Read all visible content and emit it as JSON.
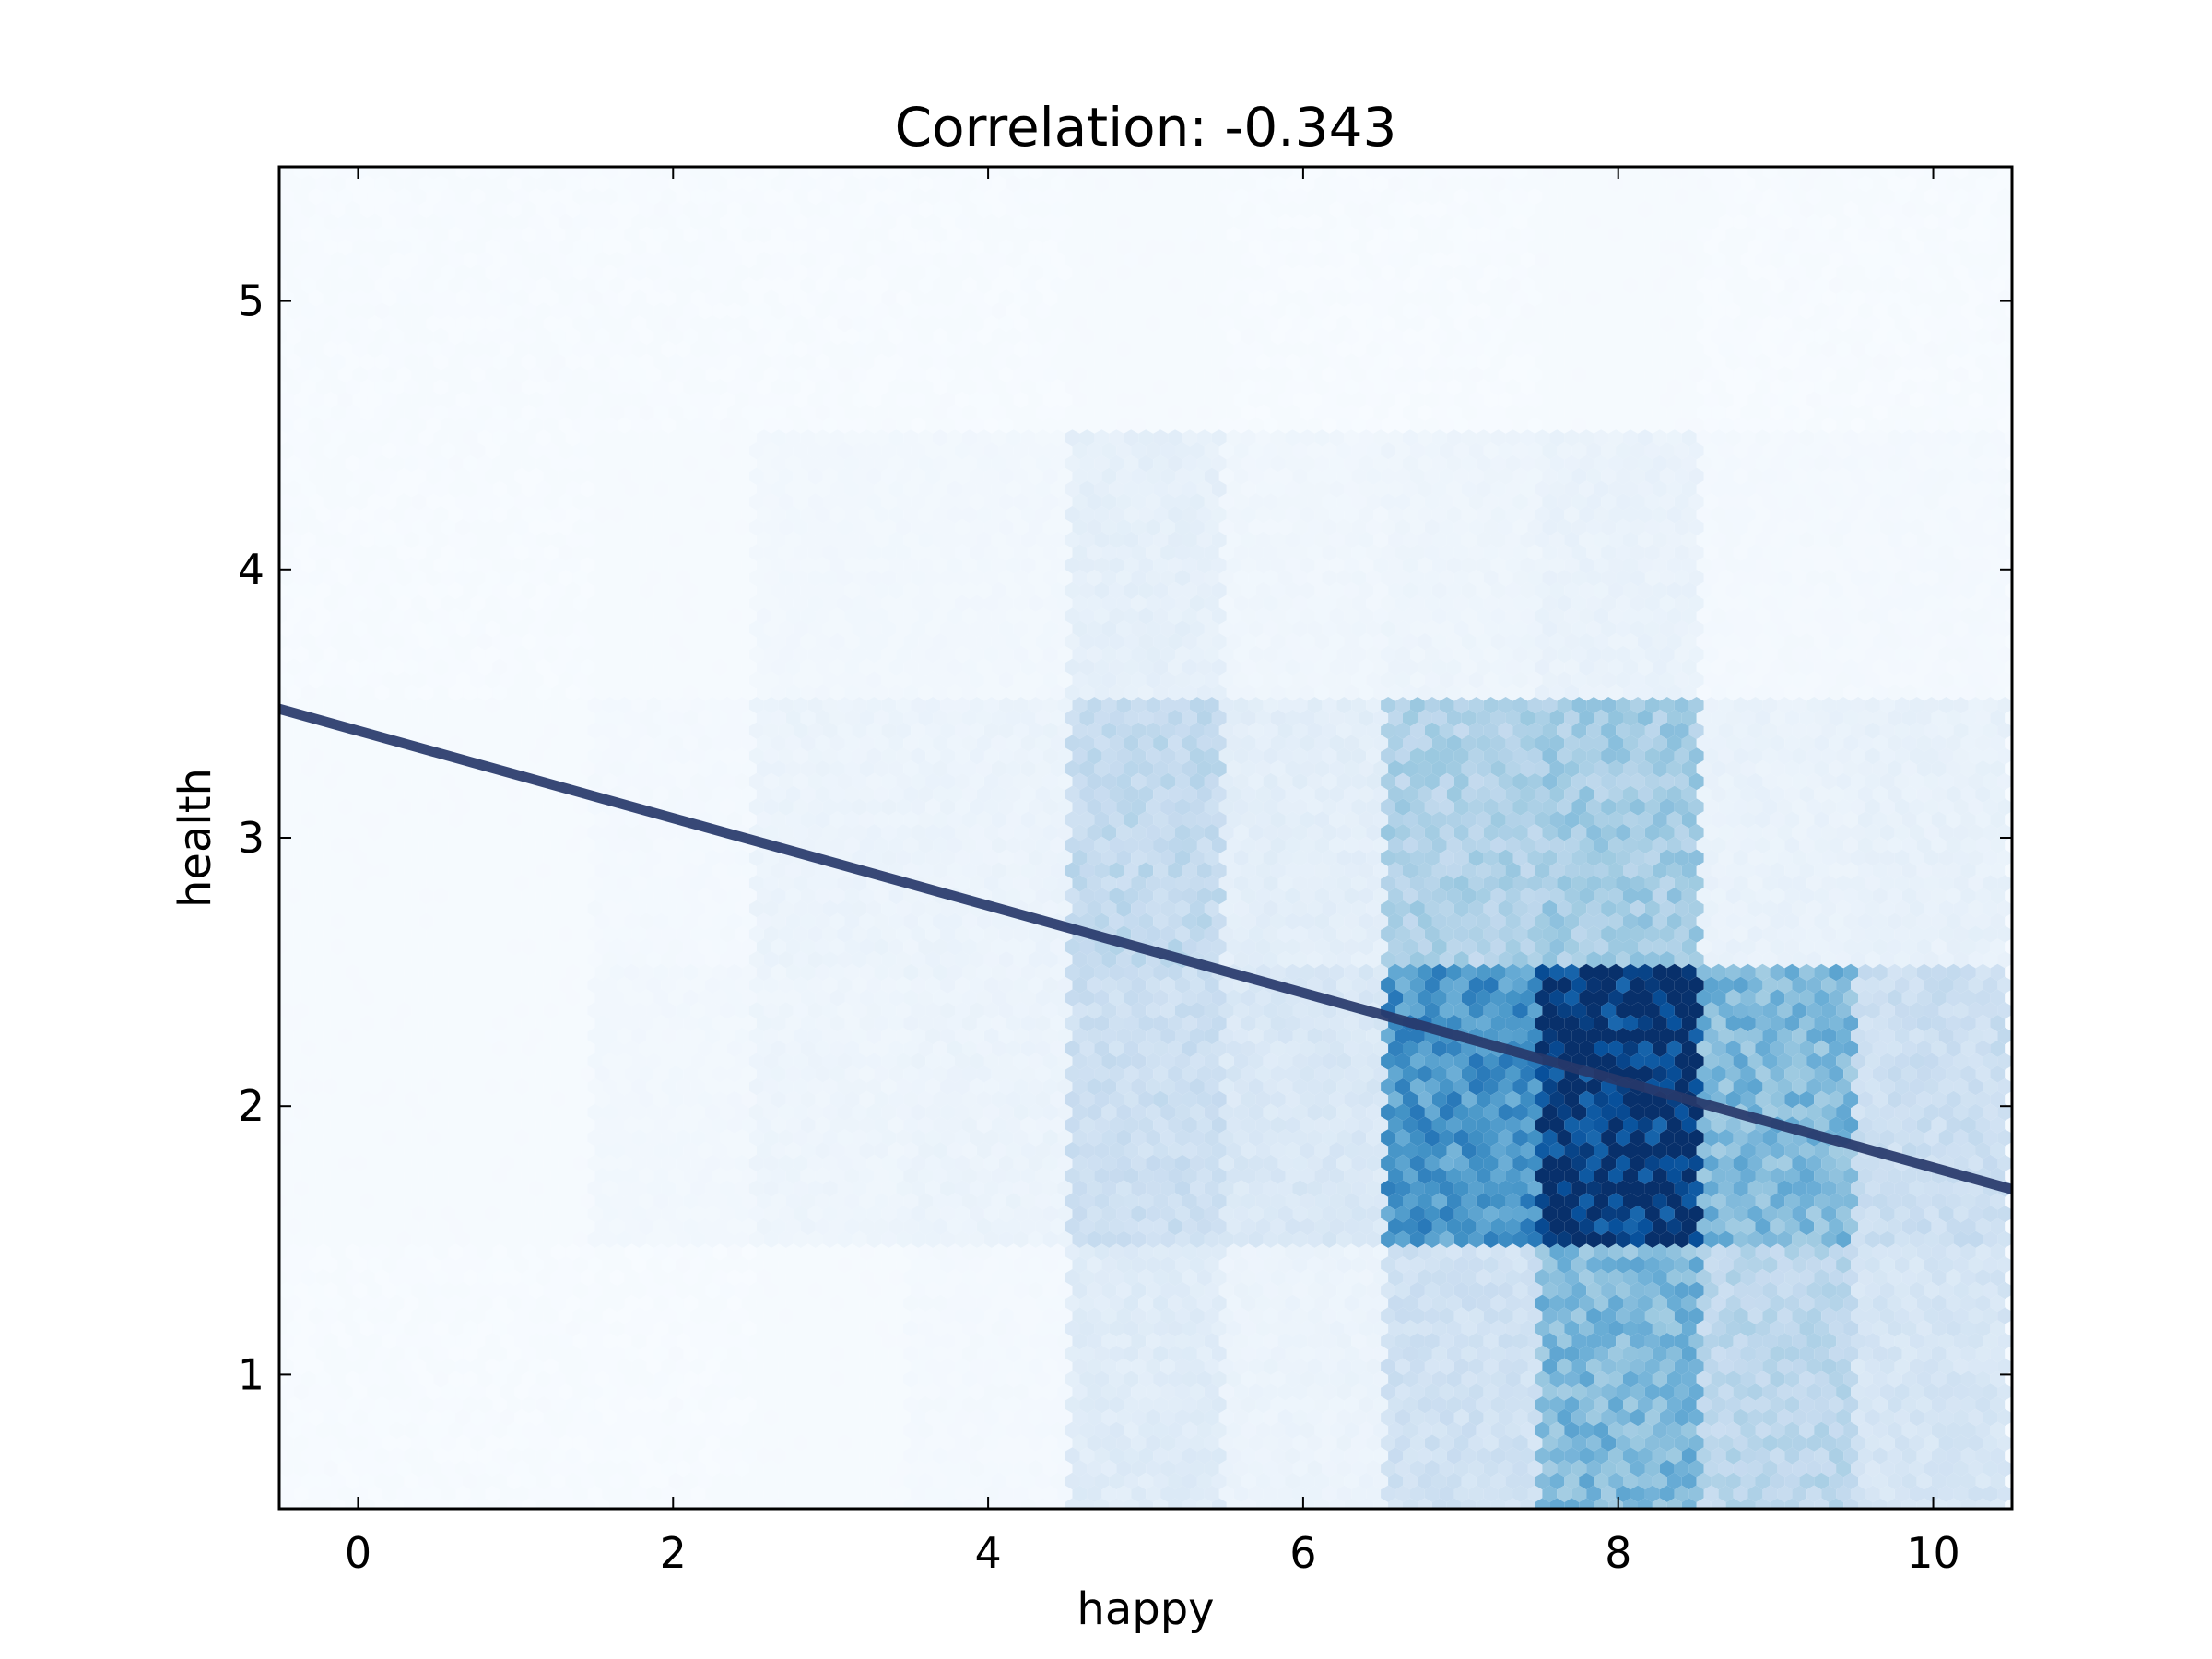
{
  "chart_data": {
    "type": "heatmap",
    "subtype": "hexbin",
    "title": "Correlation: -0.343",
    "xlabel": "happy",
    "ylabel": "health",
    "xlim": [
      -0.5,
      10.5
    ],
    "ylim": [
      0.5,
      5.5
    ],
    "xticks": [
      0,
      2,
      4,
      6,
      8,
      10
    ],
    "yticks": [
      1,
      2,
      3,
      4,
      5
    ],
    "grid": false,
    "colormap": "Blues",
    "x_categories": [
      0,
      1,
      2,
      3,
      4,
      5,
      6,
      7,
      8,
      9,
      10
    ],
    "y_categories": [
      1,
      2,
      3,
      4,
      5
    ],
    "density_relative": [
      [
        0.0,
        0.0,
        0.0,
        0.01,
        0.02,
        0.12,
        0.06,
        0.2,
        0.45,
        0.28,
        0.17
      ],
      [
        0.01,
        0.01,
        0.03,
        0.05,
        0.06,
        0.22,
        0.15,
        0.6,
        1.0,
        0.45,
        0.22
      ],
      [
        0.01,
        0.01,
        0.02,
        0.06,
        0.06,
        0.26,
        0.1,
        0.32,
        0.35,
        0.07,
        0.08
      ],
      [
        0.0,
        0.0,
        0.01,
        0.03,
        0.03,
        0.09,
        0.04,
        0.05,
        0.07,
        0.02,
        0.02
      ],
      [
        0.0,
        0.0,
        0.0,
        0.0,
        0.0,
        0.01,
        0.0,
        0.0,
        0.01,
        0.0,
        0.0
      ]
    ],
    "regression_line": {
      "x": [
        -0.5,
        10.5
      ],
      "y": [
        3.48,
        1.69
      ]
    },
    "colors": {
      "low": "#f7fbff",
      "high": "#08306b",
      "line": "#27386a"
    }
  }
}
